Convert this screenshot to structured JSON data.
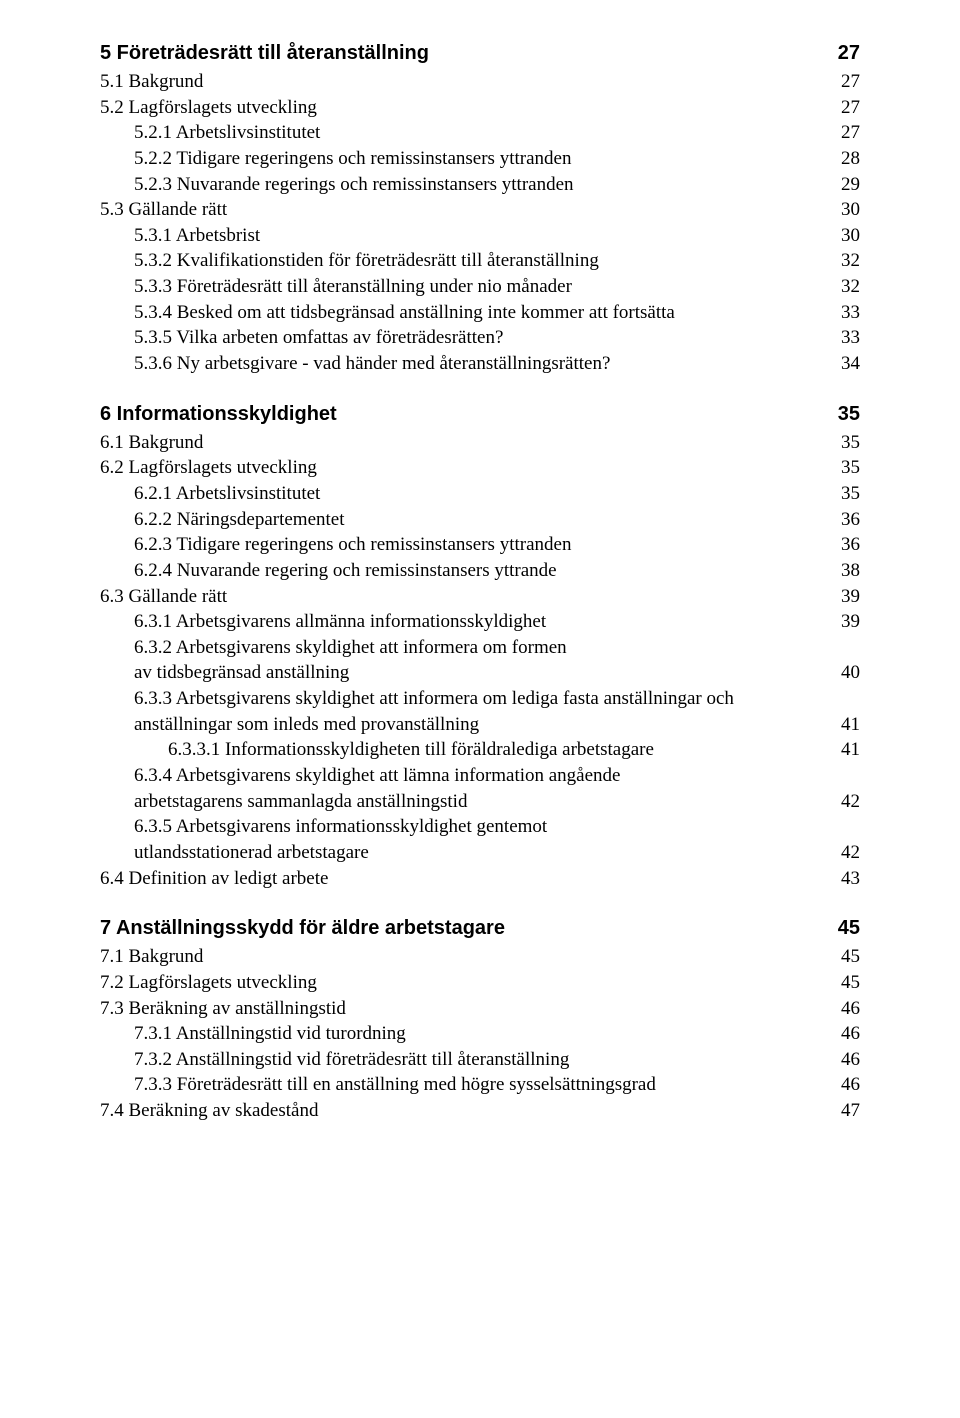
{
  "toc": [
    {
      "level": "chapter",
      "label": "5 Företrädesrätt till återanställning",
      "page": "27"
    },
    {
      "level": "section",
      "label": "5.1 Bakgrund",
      "page": "27"
    },
    {
      "level": "section",
      "label": "5.2 Lagförslagets utveckling",
      "page": "27"
    },
    {
      "level": "subsection",
      "label": "5.2.1 Arbetslivsinstitutet",
      "page": "27"
    },
    {
      "level": "subsection",
      "label": "5.2.2 Tidigare regeringens och remissinstansers yttranden",
      "page": "28"
    },
    {
      "level": "subsection",
      "label": "5.2.3 Nuvarande regerings och remissinstansers yttranden",
      "page": "29"
    },
    {
      "level": "section",
      "label": "5.3 Gällande rätt",
      "page": "30"
    },
    {
      "level": "subsection",
      "label": "5.3.1 Arbetsbrist",
      "page": "30"
    },
    {
      "level": "subsection",
      "label": "5.3.2 Kvalifikationstiden för företrädesrätt till återanställning",
      "page": "32"
    },
    {
      "level": "subsection",
      "label": "5.3.3 Företrädesrätt till återanställning under nio månader",
      "page": "32"
    },
    {
      "level": "subsection",
      "label": "5.3.4 Besked om att tidsbegränsad anställning inte kommer att fortsätta",
      "page": "33"
    },
    {
      "level": "subsection",
      "label": "5.3.5 Vilka arbeten omfattas av företrädesrätten?",
      "page": "33"
    },
    {
      "level": "subsection",
      "label": "5.3.6 Ny arbetsgivare - vad händer med återanställningsrätten?",
      "page": "34"
    },
    {
      "level": "chapter",
      "label": "6 Informationsskyldighet",
      "page": "35"
    },
    {
      "level": "section",
      "label": "6.1 Bakgrund",
      "page": "35"
    },
    {
      "level": "section",
      "label": "6.2 Lagförslagets utveckling",
      "page": "35"
    },
    {
      "level": "subsection",
      "label": "6.2.1 Arbetslivsinstitutet",
      "page": "35"
    },
    {
      "level": "subsection",
      "label": "6.2.2 Näringsdepartementet",
      "page": "36"
    },
    {
      "level": "subsection",
      "label": "6.2.3 Tidigare regeringens och remissinstansers yttranden",
      "page": "36"
    },
    {
      "level": "subsection",
      "label": "6.2.4 Nuvarande regering och remissinstansers yttrande",
      "page": "38"
    },
    {
      "level": "section",
      "label": "6.3 Gällande rätt",
      "page": "39"
    },
    {
      "level": "subsection",
      "label": "6.3.1 Arbetsgivarens allmänna informationsskyldighet",
      "page": "39"
    },
    {
      "level": "subsection",
      "label": "6.3.2 Arbetsgivarens skyldighet att informera om formen av tidsbegränsad anställning",
      "page": "40",
      "multiline": true
    },
    {
      "level": "subsection",
      "label": "6.3.3 Arbetsgivarens skyldighet att informera om lediga fasta anställningar och anställningar som inleds med provanställning",
      "page": "41",
      "multiline": true
    },
    {
      "level": "subsubsection",
      "label": "6.3.3.1 Informationsskyldigheten till föräldralediga arbetstagare",
      "page": "41"
    },
    {
      "level": "subsection",
      "label": "6.3.4 Arbetsgivarens skyldighet att lämna information angående arbetstagarens sammanlagda anställningstid",
      "page": "42",
      "multiline": true
    },
    {
      "level": "subsection",
      "label": "6.3.5 Arbetsgivarens informationsskyldighet gentemot utlandsstationerad arbetstagare",
      "page": "42",
      "multiline": true
    },
    {
      "level": "section",
      "label": "6.4 Definition av ledigt arbete",
      "page": "43"
    },
    {
      "level": "chapter",
      "label": "7 Anställningsskydd för äldre arbetstagare",
      "page": "45"
    },
    {
      "level": "section",
      "label": "7.1 Bakgrund",
      "page": "45"
    },
    {
      "level": "section",
      "label": "7.2 Lagförslagets utveckling",
      "page": "45"
    },
    {
      "level": "section",
      "label": "7.3 Beräkning av anställningstid",
      "page": "46"
    },
    {
      "level": "subsection",
      "label": "7.3.1 Anställningstid vid turordning",
      "page": "46"
    },
    {
      "level": "subsection",
      "label": "7.3.2 Anställningstid vid företrädesrätt till återanställning",
      "page": "46"
    },
    {
      "level": "subsection",
      "label": "7.3.3 Företrädesrätt till en anställning med högre sysselsättningsgrad",
      "page": "46"
    },
    {
      "level": "section",
      "label": "7.4 Beräkning av skadestånd",
      "page": "47"
    }
  ]
}
